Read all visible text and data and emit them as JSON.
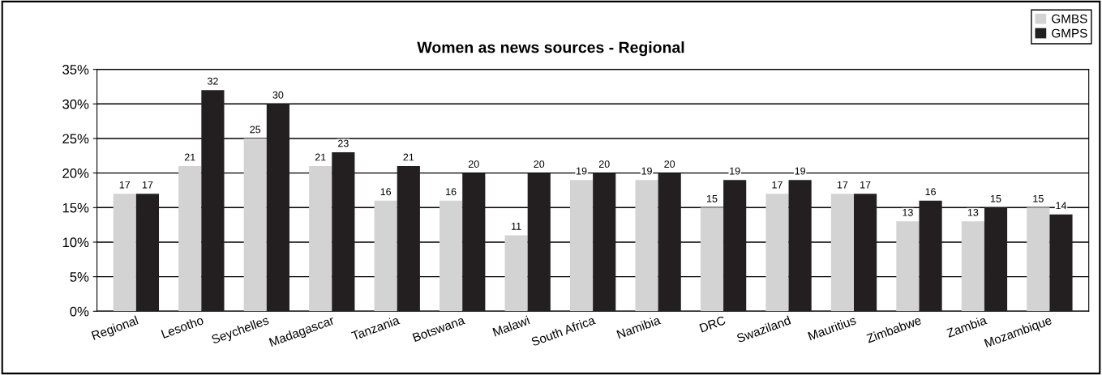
{
  "chart_data": {
    "type": "bar",
    "title": "Women as news sources - Regional",
    "categories": [
      "Regional",
      "Lesotho",
      "Seychelles",
      "Madagascar",
      "Tanzania",
      "Botswana",
      "Malawi",
      "South Africa",
      "Namibia",
      "DRC",
      "Swaziland",
      "Mauritius",
      "Zimbabwe",
      "Zambia",
      "Mozambique"
    ],
    "series": [
      {
        "name": "GMBS",
        "color": "#d3d3d3",
        "values": [
          17,
          21,
          25,
          21,
          16,
          16,
          11,
          19,
          19,
          15,
          17,
          17,
          13,
          13,
          15
        ]
      },
      {
        "name": "GMPS",
        "color": "#231f20",
        "values": [
          17,
          32,
          30,
          23,
          21,
          20,
          20,
          20,
          20,
          19,
          19,
          17,
          16,
          15,
          14
        ]
      }
    ],
    "ylim": [
      0,
      35
    ],
    "yticks": [
      {
        "value": 0,
        "label": "0%"
      },
      {
        "value": 5,
        "label": "5%"
      },
      {
        "value": 10,
        "label": "10%"
      },
      {
        "value": 15,
        "label": "15%"
      },
      {
        "value": 20,
        "label": "20%"
      },
      {
        "value": 25,
        "label": "25%"
      },
      {
        "value": 30,
        "label": "30%"
      },
      {
        "value": 35,
        "label": "35%"
      }
    ],
    "grid": "y",
    "legend": "top right",
    "data_labels": true
  }
}
